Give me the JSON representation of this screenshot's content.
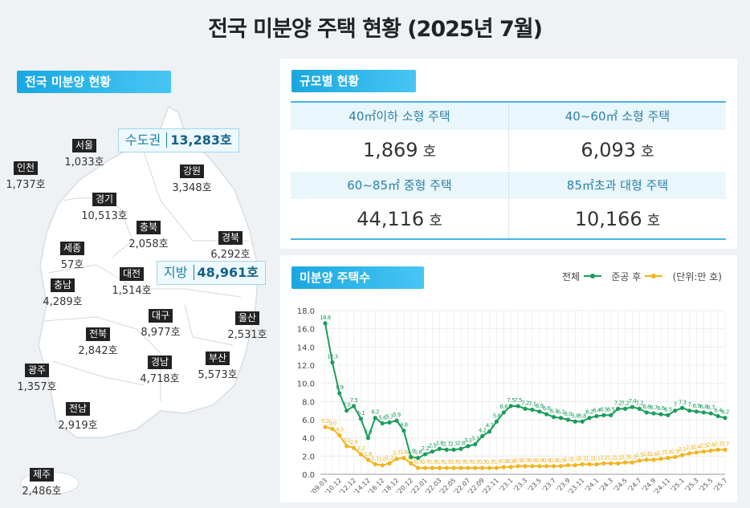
{
  "title": "전국 미분양 주택 현황 (2025년 7월)",
  "map_section": {
    "tag": "전국 미분양 현황",
    "capital": {
      "label": "수도권",
      "value": "13,283호"
    },
    "provinces": {
      "label": "지방",
      "value": "48,961호"
    },
    "regions": [
      {
        "name": "서울",
        "count": "1,033호"
      },
      {
        "name": "인천",
        "count": "1,737호"
      },
      {
        "name": "강원",
        "count": "3,348호"
      },
      {
        "name": "경기",
        "count": "10,513호"
      },
      {
        "name": "충북",
        "count": "2,058호"
      },
      {
        "name": "경북",
        "count": "6,292호"
      },
      {
        "name": "세종",
        "count": "57호"
      },
      {
        "name": "대전",
        "count": "1,514호"
      },
      {
        "name": "충남",
        "count": "4,289호"
      },
      {
        "name": "대구",
        "count": "8,977호"
      },
      {
        "name": "울산",
        "count": "2,531호"
      },
      {
        "name": "전북",
        "count": "2,842호"
      },
      {
        "name": "경남",
        "count": "4,718호"
      },
      {
        "name": "부산",
        "count": "5,573호"
      },
      {
        "name": "광주",
        "count": "1,357호"
      },
      {
        "name": "전남",
        "count": "2,919호"
      },
      {
        "name": "제주",
        "count": "2,486호"
      }
    ]
  },
  "size_section": {
    "tag": "규모별 현황",
    "unit": "호",
    "items": [
      {
        "label": "40㎡이하 소형 주택",
        "value": "1,869"
      },
      {
        "label": "40~60㎡ 소형 주택",
        "value": "6,093"
      },
      {
        "label": "60~85㎡ 중형 주택",
        "value": "44,116"
      },
      {
        "label": "85㎡초과 대형 주택",
        "value": "10,166"
      }
    ]
  },
  "chart_section": {
    "tag": "미분양 주택수",
    "legend_total": "전체",
    "legend_completed": "준공 후",
    "unit": "(단위:만 호)"
  },
  "chart_data": {
    "type": "line",
    "ylim": [
      0,
      18
    ],
    "y_ticks": [
      "0.0",
      "2.0",
      "4.0",
      "6.0",
      "8.0",
      "10.0",
      "12.0",
      "14.0",
      "16.0",
      "18.0"
    ],
    "x_tick_labels": [
      "'09.03",
      "'10.12",
      "'12.12",
      "'14.12",
      "'16.12",
      "'18.12",
      "'20.12",
      "'22.01",
      "'22.03",
      "'22.05",
      "'22.07",
      "'22.09",
      "'22.11",
      "'23.1",
      "'23.3",
      "'23.5",
      "'23.7",
      "'23.9",
      "'23.11",
      "'24.1",
      "'24.3",
      "'24.5",
      "'24.7",
      "'24.9",
      "'24.11",
      "'25.1",
      "'25.3",
      "'25.5",
      "'25.7"
    ],
    "grid": true,
    "legend": "top-right",
    "series": [
      {
        "name": "전체",
        "color": "#1a9d5c",
        "values": [
          16.6,
          12.3,
          8.9,
          7.0,
          7.5,
          6.1,
          4.0,
          6.2,
          5.6,
          5.7,
          5.9,
          4.8,
          1.9,
          1.8,
          2.2,
          2.5,
          2.8,
          2.7,
          2.7,
          2.8,
          3.1,
          3.3,
          4.2,
          4.7,
          5.8,
          6.8,
          7.5,
          7.5,
          7.2,
          7.1,
          6.9,
          6.6,
          6.3,
          6.2,
          6.0,
          5.8,
          5.8,
          6.2,
          6.4,
          6.5,
          6.5,
          7.2,
          7.2,
          7.4,
          7.2,
          6.8,
          6.7,
          6.6,
          6.5,
          7,
          7.3,
          7,
          6.9,
          6.8,
          6.7,
          6.4,
          6.2
        ]
      },
      {
        "name": "준공 후",
        "color": "#f2b31c",
        "values": [
          5.2,
          5.0,
          4.3,
          3.1,
          2.9,
          2.2,
          1.6,
          1.1,
          1.0,
          1.2,
          1.7,
          1.8,
          1.2,
          0.7,
          0.7,
          0.7,
          0.7,
          0.7,
          0.7,
          0.7,
          0.7,
          0.7,
          0.7,
          0.7,
          0.7,
          0.8,
          0.8,
          0.9,
          0.9,
          0.9,
          0.9,
          0.9,
          0.9,
          0.9,
          1,
          1,
          1.1,
          1.1,
          1.1,
          1.2,
          1.2,
          1.2,
          1.3,
          1.3,
          1.5,
          1.6,
          1.6,
          1.7,
          1.8,
          1.9,
          2.1,
          2.3,
          2.4,
          2.5,
          2.6,
          2.7,
          2.7
        ]
      }
    ]
  }
}
